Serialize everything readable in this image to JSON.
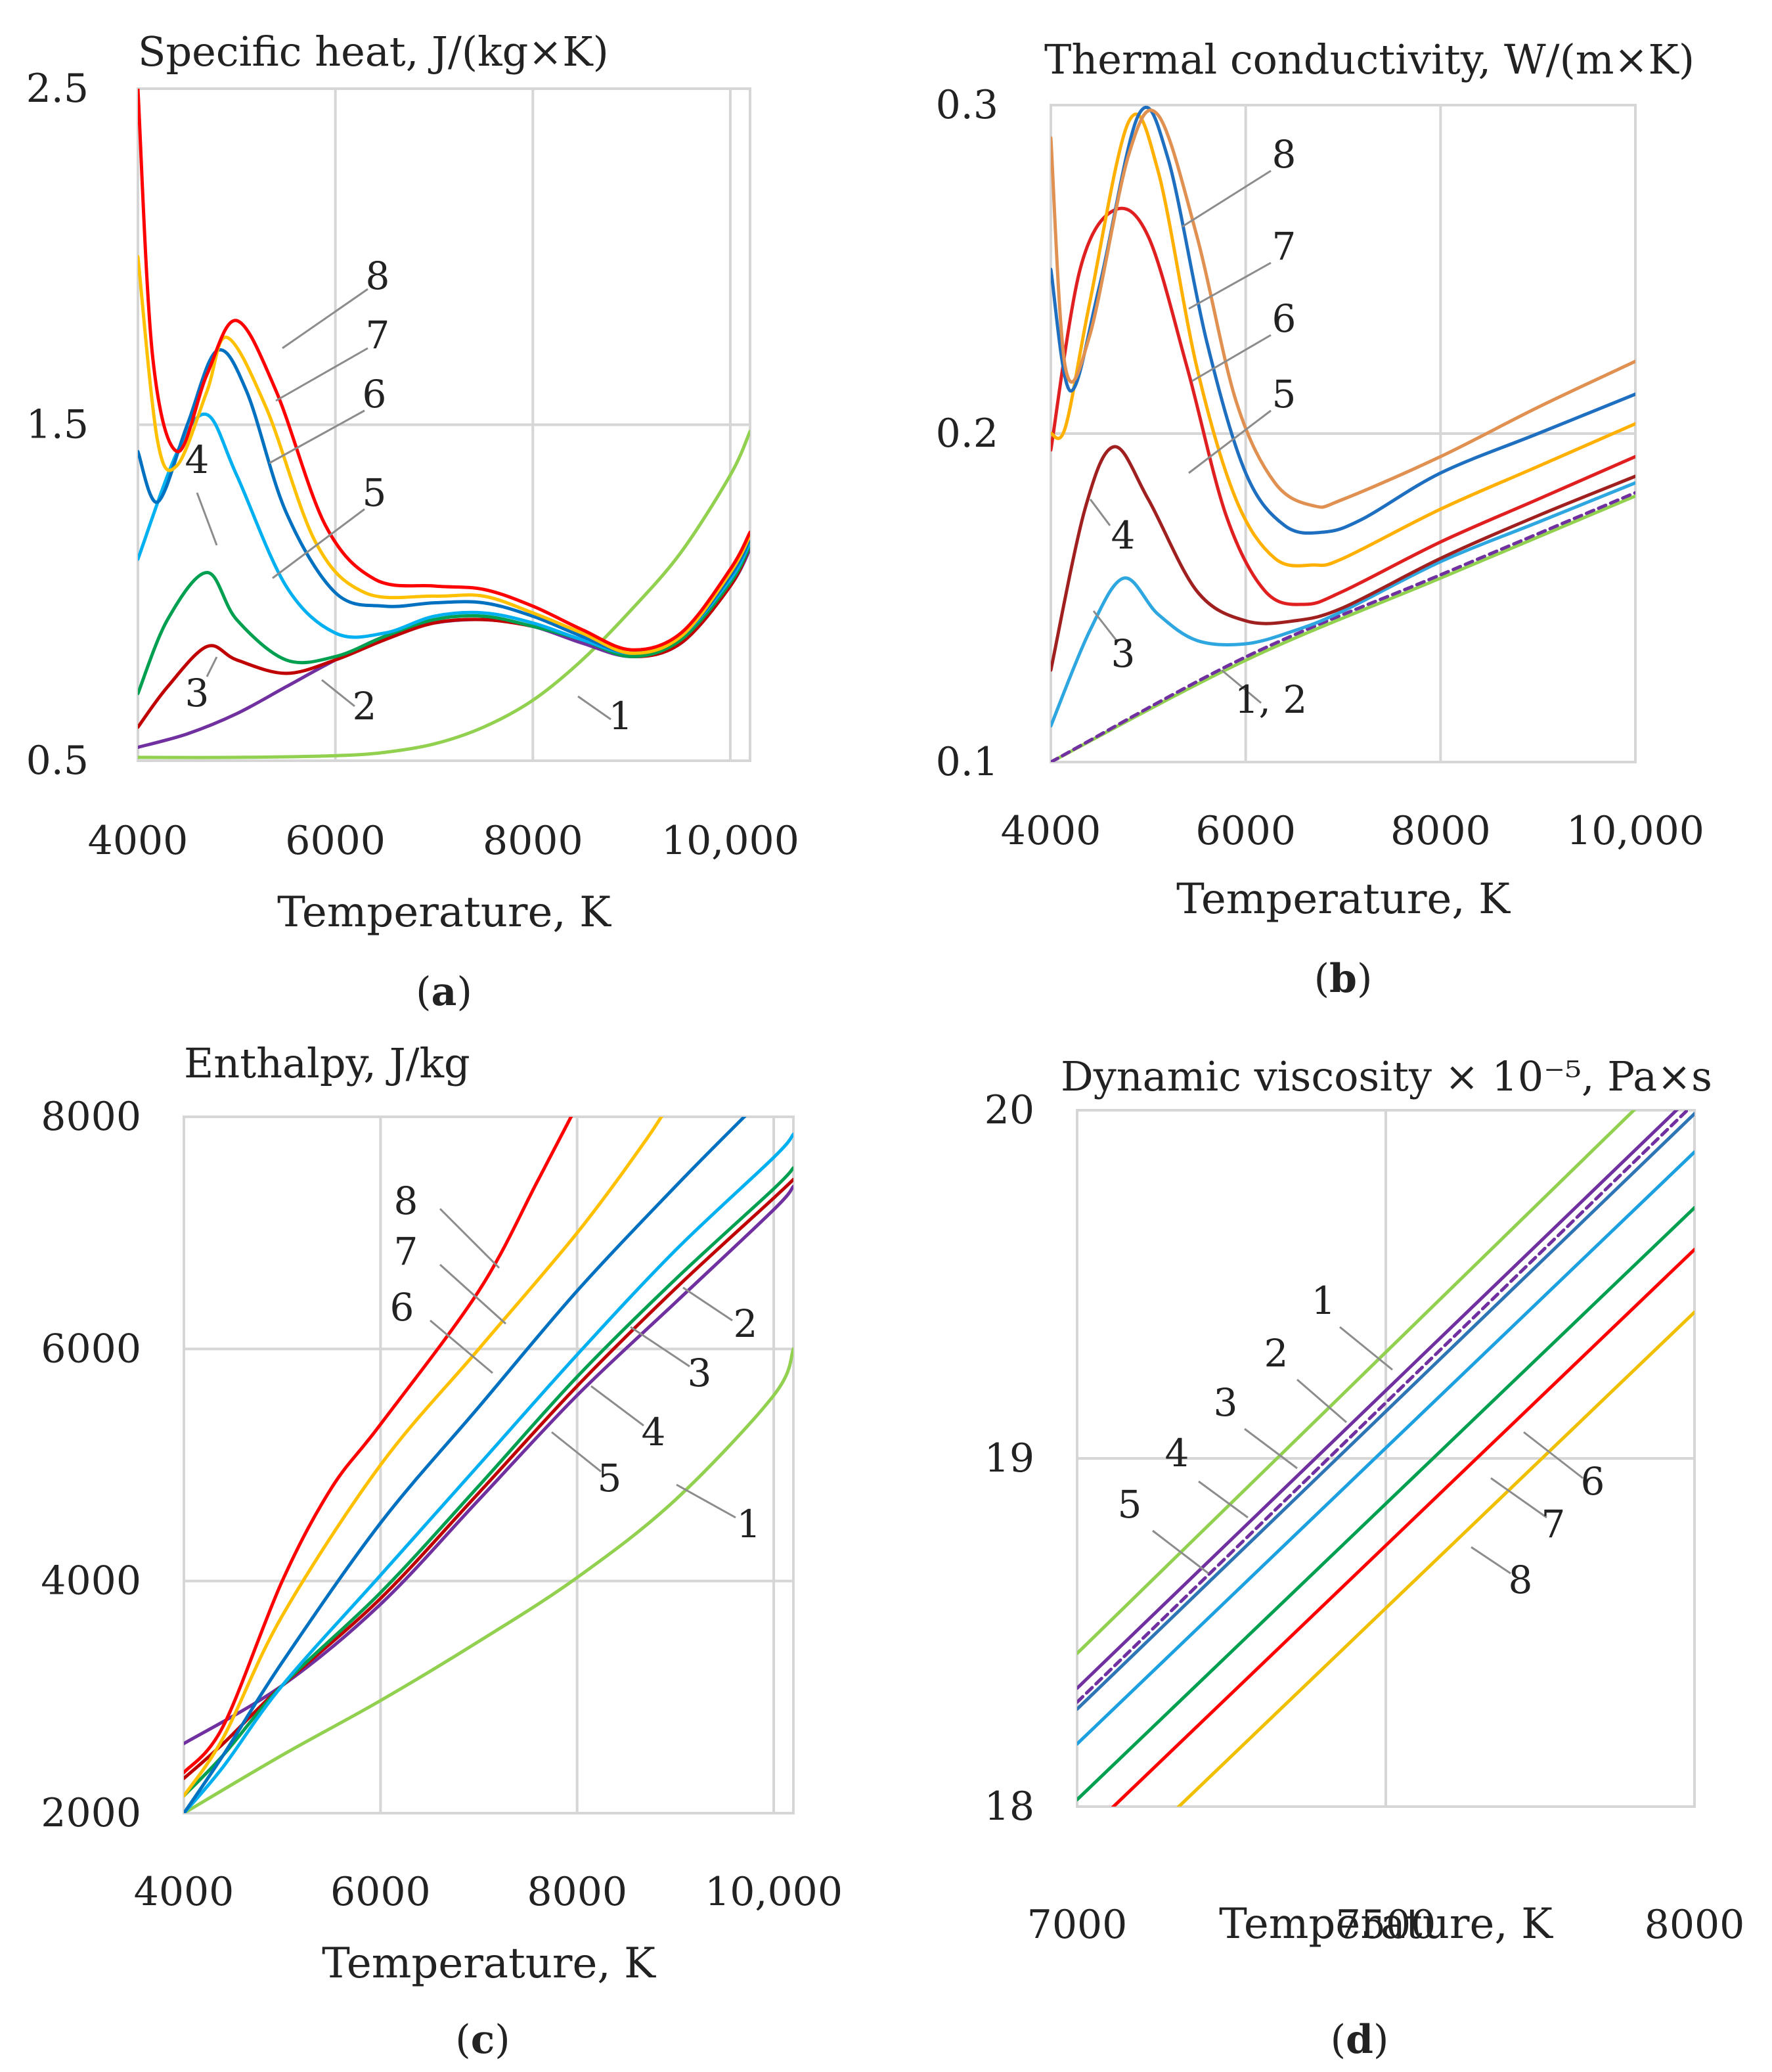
{
  "colors": {
    "s1": "#92D050",
    "s2": "#7030A0",
    "s3": "#00B0F0",
    "s4": "#00A050",
    "s5": "#C00000",
    "s6": "#0070C0",
    "s7": "#FFC000",
    "s8": "#FF0000",
    "tc_s1": "#92D050",
    "tc_s2": "#7030A0",
    "tc_s3": "#2EA6E0",
    "tc_s4": "#A02020",
    "tc_s5": "#E02020",
    "tc_s6": "#FFB000",
    "tc_s7": "#1F6FC0",
    "tc_s8": "#E09050",
    "vis_s2": "#7030A0",
    "vis_s3": "#2E75B6",
    "vis_s5": "#1CA0E0",
    "vis_s8": "#F0C000"
  },
  "chart_data": [
    {
      "id": "a",
      "type": "line",
      "title": "Specific heat,   J/(kg×K)",
      "xlabel": "Temperature, K",
      "caption_open": "(",
      "caption_letter": "a",
      "caption_close": ")",
      "xlim": [
        4000,
        10200
      ],
      "ylim": [
        0.5,
        2.5
      ],
      "xticks": [
        4000,
        6000,
        8000,
        10000
      ],
      "xtick_labels": [
        "4000",
        "6000",
        "8000",
        "10,000"
      ],
      "yticks": [
        0.5,
        1.5,
        2.5
      ],
      "ytick_labels": [
        "0.5",
        "1.5",
        "2.5"
      ],
      "series": [
        {
          "name": "1",
          "color": "s1",
          "x": [
            4000,
            5000,
            6000,
            6500,
            7000,
            7500,
            8000,
            8500,
            9000,
            9500,
            10000,
            10200
          ],
          "y": [
            0.51,
            0.51,
            0.515,
            0.525,
            0.55,
            0.6,
            0.68,
            0.8,
            0.95,
            1.12,
            1.35,
            1.48
          ]
        },
        {
          "name": "2",
          "color": "s2",
          "x": [
            4000,
            4500,
            5000,
            5500,
            6000,
            6500,
            7000,
            7500,
            8000,
            8500,
            9000,
            9500,
            10000,
            10200
          ],
          "y": [
            0.54,
            0.58,
            0.64,
            0.72,
            0.8,
            0.87,
            0.91,
            0.92,
            0.9,
            0.85,
            0.81,
            0.85,
            1.02,
            1.13
          ]
        },
        {
          "name": "3",
          "color": "s5",
          "x": [
            4000,
            4300,
            4700,
            5000,
            5500,
            6000,
            6500,
            7000,
            7500,
            8000,
            8500,
            9000,
            9500,
            10000,
            10200
          ],
          "y": [
            0.6,
            0.72,
            0.84,
            0.8,
            0.76,
            0.8,
            0.86,
            0.91,
            0.92,
            0.9,
            0.86,
            0.81,
            0.85,
            1.02,
            1.14
          ]
        },
        {
          "name": "4",
          "color": "s4",
          "x": [
            4000,
            4300,
            4700,
            5000,
            5500,
            6000,
            6500,
            7000,
            7500,
            8000,
            8500,
            9000,
            9500,
            10000,
            10200
          ],
          "y": [
            0.7,
            0.92,
            1.06,
            0.92,
            0.8,
            0.81,
            0.87,
            0.92,
            0.93,
            0.9,
            0.86,
            0.81,
            0.86,
            1.03,
            1.14
          ]
        },
        {
          "name": "5",
          "color": "s3",
          "x": [
            4000,
            4400,
            4700,
            5000,
            5500,
            6000,
            6500,
            7000,
            7500,
            8000,
            8500,
            9000,
            9500,
            10000,
            10200
          ],
          "y": [
            1.1,
            1.42,
            1.53,
            1.35,
            1.02,
            0.88,
            0.88,
            0.93,
            0.94,
            0.91,
            0.86,
            0.82,
            0.87,
            1.04,
            1.15
          ]
        },
        {
          "name": "6",
          "color": "s6",
          "x": [
            4000,
            4200,
            4500,
            4800,
            5100,
            5500,
            6000,
            6500,
            7000,
            7500,
            8000,
            8500,
            9000,
            9500,
            10000,
            10200
          ],
          "y": [
            1.42,
            1.27,
            1.5,
            1.72,
            1.6,
            1.24,
            1.0,
            0.96,
            0.97,
            0.97,
            0.93,
            0.87,
            0.82,
            0.87,
            1.05,
            1.16
          ]
        },
        {
          "name": "7",
          "color": "s7",
          "x": [
            4000,
            4200,
            4400,
            4700,
            4900,
            5300,
            5800,
            6300,
            7000,
            7500,
            8000,
            8500,
            9000,
            9500,
            10000,
            10200
          ],
          "y": [
            2.0,
            1.45,
            1.38,
            1.6,
            1.76,
            1.55,
            1.15,
            1.0,
            0.99,
            0.99,
            0.94,
            0.88,
            0.82,
            0.87,
            1.06,
            1.17
          ]
        },
        {
          "name": "8",
          "color": "s8",
          "x": [
            4000,
            4150,
            4400,
            4700,
            5000,
            5400,
            5900,
            6400,
            7000,
            7500,
            8000,
            8500,
            9000,
            9500,
            10000,
            10200
          ],
          "y": [
            2.5,
            1.7,
            1.42,
            1.65,
            1.81,
            1.6,
            1.2,
            1.04,
            1.02,
            1.01,
            0.96,
            0.89,
            0.83,
            0.88,
            1.07,
            1.18
          ]
        }
      ],
      "labels": [
        "8",
        "7",
        "6",
        "5",
        "4",
        "3",
        "2",
        "1"
      ]
    },
    {
      "id": "b",
      "type": "line",
      "title": "Thermal conductivity, W/(m×K)",
      "xlabel": "Temperature, K",
      "caption_open": "(",
      "caption_letter": "b",
      "caption_close": ")",
      "xlim": [
        4000,
        10000
      ],
      "ylim": [
        0.1,
        0.3
      ],
      "xticks": [
        4000,
        6000,
        8000,
        10000
      ],
      "xtick_labels": [
        "4000",
        "6000",
        "8000",
        "10,000"
      ],
      "yticks": [
        0.1,
        0.2,
        0.3
      ],
      "ytick_labels": [
        "0.1",
        "0.2",
        "0.3"
      ],
      "series": [
        {
          "name": "1",
          "color": "tc_s1",
          "x": [
            4000,
            6000,
            8000,
            10000
          ],
          "y": [
            0.1,
            0.131,
            0.156,
            0.181
          ]
        },
        {
          "name": "2",
          "color": "tc_s2",
          "dashed": true,
          "x": [
            4000,
            6000,
            8000,
            10000
          ],
          "y": [
            0.1,
            0.132,
            0.157,
            0.182
          ]
        },
        {
          "name": "3",
          "color": "tc_s3",
          "x": [
            4000,
            4400,
            4750,
            5100,
            5500,
            6000,
            6500,
            7000,
            8000,
            9000,
            10000
          ],
          "y": [
            0.111,
            0.14,
            0.156,
            0.145,
            0.137,
            0.136,
            0.14,
            0.146,
            0.161,
            0.173,
            0.185
          ]
        },
        {
          "name": "4",
          "color": "tc_s4",
          "x": [
            4000,
            4350,
            4650,
            5000,
            5500,
            6000,
            6500,
            7000,
            8000,
            9000,
            10000
          ],
          "y": [
            0.128,
            0.177,
            0.196,
            0.18,
            0.152,
            0.143,
            0.143,
            0.147,
            0.162,
            0.175,
            0.187
          ]
        },
        {
          "name": "5",
          "color": "tc_s5",
          "x": [
            4000,
            4300,
            4650,
            5000,
            5400,
            5800,
            6200,
            6600,
            7000,
            8000,
            9000,
            10000
          ],
          "y": [
            0.195,
            0.25,
            0.268,
            0.26,
            0.22,
            0.175,
            0.152,
            0.148,
            0.152,
            0.167,
            0.18,
            0.193
          ]
        },
        {
          "name": "6",
          "color": "tc_s6",
          "x": [
            4000,
            4150,
            4400,
            4800,
            5100,
            5500,
            5900,
            6300,
            6700,
            7000,
            8000,
            9000,
            10000
          ],
          "y": [
            0.2,
            0.202,
            0.24,
            0.295,
            0.28,
            0.22,
            0.18,
            0.162,
            0.16,
            0.162,
            0.177,
            0.19,
            0.203
          ]
        },
        {
          "name": "7",
          "color": "tc_s7",
          "x": [
            4000,
            4200,
            4500,
            4900,
            5200,
            5600,
            6000,
            6400,
            6800,
            7200,
            8000,
            9000,
            10000
          ],
          "y": [
            0.25,
            0.213,
            0.245,
            0.297,
            0.284,
            0.228,
            0.188,
            0.172,
            0.17,
            0.174,
            0.188,
            0.2,
            0.212
          ]
        },
        {
          "name": "8",
          "color": "tc_s8",
          "x": [
            4000,
            4150,
            4400,
            4800,
            5100,
            5500,
            5900,
            6300,
            6700,
            7000,
            8000,
            9000,
            10000
          ],
          "y": [
            0.29,
            0.22,
            0.23,
            0.285,
            0.297,
            0.26,
            0.21,
            0.185,
            0.178,
            0.18,
            0.193,
            0.208,
            0.222
          ]
        }
      ],
      "labels": [
        "8",
        "7",
        "6",
        "5",
        "4",
        "3",
        "1, 2"
      ]
    },
    {
      "id": "c",
      "type": "line",
      "title": "Enthalpy,   J/kg",
      "xlabel": "Temperature, K",
      "caption_open": "(",
      "caption_letter": "c",
      "caption_close": ")",
      "xlim": [
        4000,
        10200
      ],
      "ylim": [
        2000,
        8000
      ],
      "xticks": [
        4000,
        6000,
        8000,
        10000
      ],
      "xtick_labels": [
        "4000",
        "6000",
        "8000",
        "10,000"
      ],
      "yticks": [
        2000,
        4000,
        6000,
        8000
      ],
      "ytick_labels": [
        "2000",
        "4000",
        "6000",
        "8000"
      ],
      "series": [
        {
          "name": "1",
          "color": "s1",
          "x": [
            4000,
            5000,
            6000,
            7000,
            8000,
            9000,
            10000,
            10200
          ],
          "y": [
            2000,
            2500,
            2970,
            3480,
            4030,
            4700,
            5600,
            6000
          ]
        },
        {
          "name": "2",
          "color": "s2",
          "x": [
            4000,
            5000,
            6000,
            7000,
            8000,
            9000,
            10000,
            10200
          ],
          "y": [
            2600,
            3100,
            3800,
            4700,
            5600,
            6400,
            7200,
            7400
          ]
        },
        {
          "name": "3",
          "color": "s5",
          "x": [
            4000,
            4400,
            5000,
            6000,
            7000,
            8000,
            9000,
            10000,
            10200
          ],
          "y": [
            2300,
            2600,
            3100,
            3850,
            4760,
            5680,
            6520,
            7300,
            7460
          ]
        },
        {
          "name": "4",
          "color": "s4",
          "x": [
            4000,
            4400,
            5000,
            6000,
            7000,
            8000,
            9000,
            10000,
            10200
          ],
          "y": [
            2150,
            2500,
            3100,
            3900,
            4820,
            5760,
            6600,
            7380,
            7560
          ]
        },
        {
          "name": "5",
          "color": "s3",
          "x": [
            4000,
            4400,
            5000,
            6000,
            7000,
            8000,
            9000,
            10000,
            10200
          ],
          "y": [
            2000,
            2400,
            3100,
            4050,
            5000,
            5950,
            6850,
            7650,
            7850
          ]
        },
        {
          "name": "6",
          "color": "s6",
          "x": [
            4000,
            4400,
            5000,
            6000,
            7000,
            8000,
            9000,
            9700,
            10000
          ],
          "y": [
            2000,
            2500,
            3300,
            4500,
            5500,
            6500,
            7400,
            8000,
            8250
          ]
        },
        {
          "name": "7",
          "color": "s7",
          "x": [
            4000,
            4400,
            5000,
            6000,
            7000,
            8000,
            8700,
            9000
          ],
          "y": [
            2150,
            2650,
            3700,
            5000,
            6000,
            7000,
            7800,
            8200
          ]
        },
        {
          "name": "8",
          "color": "s8",
          "x": [
            4000,
            4400,
            5000,
            5500,
            6000,
            7000,
            7600,
            8000
          ],
          "y": [
            2350,
            2750,
            4000,
            4800,
            5350,
            6500,
            7450,
            8100
          ]
        }
      ],
      "labels": [
        "8",
        "7",
        "6",
        "5",
        "4",
        "3",
        "2",
        "1"
      ]
    },
    {
      "id": "d",
      "type": "line",
      "title": "Dynamic viscosity × 10⁻⁵, Pa×s",
      "xlabel": "Temperature, K",
      "caption_open": "(",
      "caption_letter": "d",
      "caption_close": ")",
      "xlim": [
        7000,
        8000
      ],
      "ylim": [
        18,
        20
      ],
      "xticks": [
        7000,
        7500,
        8000
      ],
      "xtick_labels": [
        "7000",
        "7500",
        "8000"
      ],
      "yticks": [
        18,
        19,
        20
      ],
      "ytick_labels": [
        "18",
        "19",
        "20"
      ],
      "series": [
        {
          "name": "1",
          "color": "s1",
          "x": [
            7000,
            8000
          ],
          "y": [
            18.44,
            20.17
          ]
        },
        {
          "name": "2",
          "color": "vis_s2",
          "x": [
            7000,
            8000
          ],
          "y": [
            18.34,
            20.05
          ]
        },
        {
          "name": "3",
          "color": "vis_s2",
          "dashed": true,
          "x": [
            7000,
            8000
          ],
          "y": [
            18.3,
            20.02
          ]
        },
        {
          "name": "4",
          "color": "vis_s3",
          "x": [
            7000,
            8000
          ],
          "y": [
            18.28,
            19.99
          ]
        },
        {
          "name": "5",
          "color": "vis_s5",
          "x": [
            7000,
            8000
          ],
          "y": [
            18.18,
            19.88
          ]
        },
        {
          "name": "6",
          "color": "s4",
          "x": [
            7000,
            8000
          ],
          "y": [
            18.02,
            19.72
          ]
        },
        {
          "name": "7",
          "color": "s8",
          "x": [
            7000,
            8000
          ],
          "y": [
            17.9,
            19.6
          ]
        },
        {
          "name": "8",
          "color": "vis_s8",
          "x": [
            7000,
            8000
          ],
          "y": [
            17.72,
            19.42
          ]
        }
      ],
      "labels": [
        "1",
        "2",
        "3",
        "4",
        "5",
        "6",
        "7",
        "8"
      ]
    }
  ]
}
